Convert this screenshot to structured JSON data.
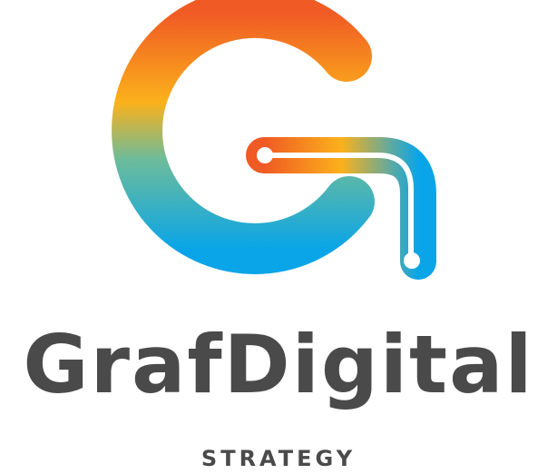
{
  "brand": {
    "name": "GrafDigital",
    "tagline": "STRATEGY",
    "icon": "stylized-letter-g-circuit-icon"
  },
  "colors": {
    "orange_red": "#F05A24",
    "orange": "#F7931E",
    "yellow": "#FBB11B",
    "teal": "#44B8A8",
    "blue": "#0AA5E8",
    "text": "#4A4A4A",
    "background": "#FFFFFF"
  }
}
